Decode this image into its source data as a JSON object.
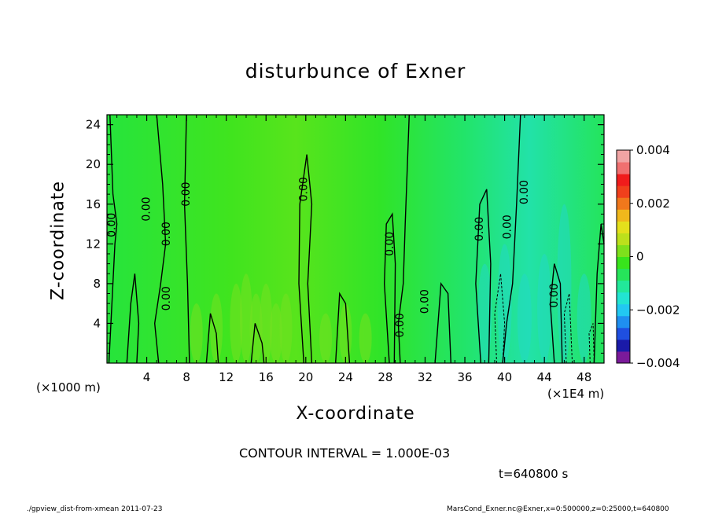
{
  "chart_data": {
    "type": "heatmap",
    "title": "disturbunce of Exner",
    "xlabel": "X-coordinate",
    "ylabel": "Z-coordinate",
    "x_unit_left": "(×1000 m)",
    "x_unit_right": "(×1E4 m)",
    "xlim": [
      0,
      50
    ],
    "ylim": [
      0,
      25
    ],
    "x_ticks": [
      "4",
      "8",
      "12",
      "16",
      "20",
      "24",
      "28",
      "32",
      "36",
      "40",
      "44",
      "48"
    ],
    "x_tick_values": [
      4,
      8,
      12,
      16,
      20,
      24,
      28,
      32,
      36,
      40,
      44,
      48
    ],
    "y_ticks": [
      "4",
      "8",
      "12",
      "16",
      "20",
      "24"
    ],
    "y_tick_values": [
      4,
      8,
      12,
      16,
      20,
      24
    ],
    "colorbar": {
      "ticks": [
        "0.004",
        "0.002",
        "0",
        "−0.002",
        "−0.004"
      ],
      "tick_values": [
        0.004,
        0.002,
        0,
        -0.002,
        -0.004
      ],
      "colors": [
        "#7a1a9a",
        "#1a1aa8",
        "#1f4fe0",
        "#1f8ff0",
        "#22c8f2",
        "#22e4d2",
        "#22e89a",
        "#26e45a",
        "#38e41c",
        "#7ee01c",
        "#bce01c",
        "#e4e01c",
        "#f0b81c",
        "#f0781c",
        "#f0401c",
        "#f01c1c",
        "#f07070",
        "#f0a4a4"
      ]
    },
    "contour_labels": [
      {
        "text": "0.00",
        "x": 0.5,
        "z": 13.9
      },
      {
        "text": "0.00",
        "x": 4.0,
        "z": 15.5
      },
      {
        "text": "0.00",
        "x": 6.0,
        "z": 13.0
      },
      {
        "text": "0.00",
        "x": 8.0,
        "z": 17.0
      },
      {
        "text": "0.00",
        "x": 6.0,
        "z": 6.5
      },
      {
        "text": "0.00",
        "x": 19.8,
        "z": 17.5
      },
      {
        "text": "0.00",
        "x": 28.5,
        "z": 12.0
      },
      {
        "text": "0.00",
        "x": 29.5,
        "z": 3.8
      },
      {
        "text": "0.00",
        "x": 32.0,
        "z": 6.2
      },
      {
        "text": "0.00",
        "x": 37.5,
        "z": 13.5
      },
      {
        "text": "0.00",
        "x": 40.3,
        "z": 13.7
      },
      {
        "text": "0.00",
        "x": 42.0,
        "z": 17.2
      },
      {
        "text": "0.00",
        "x": 45.0,
        "z": 6.8
      }
    ],
    "contour_interval_text": "CONTOUR INTERVAL = 1.000E-03",
    "time_text": "t=640800 s"
  },
  "footer": {
    "left": "./gpview_dist-from-xmean  2011-07-23",
    "right": "MarsCond_Exner.nc@Exner,x=0:500000,z=0:25000,t=640800"
  }
}
